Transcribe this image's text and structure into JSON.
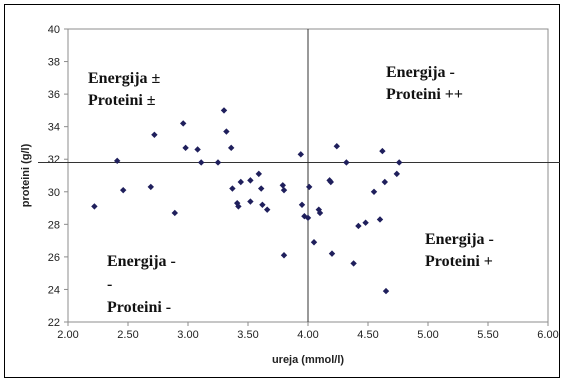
{
  "chart_data": {
    "type": "scatter",
    "xlabel": "ureja (mmol/l)",
    "ylabel": "proteini (g/l)",
    "xlim": [
      2.0,
      6.0
    ],
    "ylim": [
      22,
      40
    ],
    "xticks": [
      "2.00",
      "2.50",
      "3.00",
      "3.50",
      "4.00",
      "4.50",
      "5.00",
      "5.50",
      "6.00"
    ],
    "yticks": [
      "22",
      "24",
      "26",
      "28",
      "30",
      "32",
      "34",
      "36",
      "38",
      "40"
    ],
    "grid": false,
    "legend": "none",
    "marker_color": "#1f1f5c",
    "reference_lines": {
      "x": 4.0,
      "y": 31.8
    },
    "annotations": [
      {
        "lines": [
          "Energija ±",
          "Proteini  ±"
        ],
        "quadrant": "top-left"
      },
      {
        "lines": [
          "Energija -",
          "Proteini  ++"
        ],
        "quadrant": "top-right"
      },
      {
        "lines": [
          "Energija -",
          "-",
          "Proteini  -"
        ],
        "quadrant": "bottom-left"
      },
      {
        "lines": [
          "Energija -",
          "Proteini  +"
        ],
        "quadrant": "bottom-right"
      }
    ],
    "points": [
      [
        2.22,
        29.1
      ],
      [
        2.41,
        31.9
      ],
      [
        2.46,
        30.1
      ],
      [
        2.69,
        30.3
      ],
      [
        2.72,
        33.5
      ],
      [
        2.89,
        28.7
      ],
      [
        2.96,
        34.2
      ],
      [
        2.98,
        32.7
      ],
      [
        3.08,
        32.6
      ],
      [
        3.11,
        31.8
      ],
      [
        3.25,
        31.8
      ],
      [
        3.3,
        35.0
      ],
      [
        3.32,
        33.7
      ],
      [
        3.36,
        32.7
      ],
      [
        3.37,
        30.2
      ],
      [
        3.41,
        29.3
      ],
      [
        3.42,
        29.1
      ],
      [
        3.44,
        30.6
      ],
      [
        3.52,
        29.4
      ],
      [
        3.52,
        30.7
      ],
      [
        3.59,
        31.1
      ],
      [
        3.61,
        30.2
      ],
      [
        3.62,
        29.2
      ],
      [
        3.66,
        28.9
      ],
      [
        3.79,
        30.4
      ],
      [
        3.8,
        30.1
      ],
      [
        3.8,
        26.1
      ],
      [
        3.94,
        32.3
      ],
      [
        3.95,
        29.2
      ],
      [
        3.97,
        28.5
      ],
      [
        4.0,
        28.4
      ],
      [
        4.01,
        30.3
      ],
      [
        4.05,
        26.9
      ],
      [
        4.09,
        28.9
      ],
      [
        4.1,
        28.7
      ],
      [
        4.18,
        30.7
      ],
      [
        4.19,
        30.6
      ],
      [
        4.2,
        26.2
      ],
      [
        4.24,
        32.8
      ],
      [
        4.32,
        31.8
      ],
      [
        4.38,
        25.6
      ],
      [
        4.42,
        27.9
      ],
      [
        4.48,
        28.1
      ],
      [
        4.55,
        30.0
      ],
      [
        4.6,
        28.3
      ],
      [
        4.62,
        32.5
      ],
      [
        4.64,
        30.6
      ],
      [
        4.65,
        23.9
      ],
      [
        4.74,
        31.1
      ],
      [
        4.76,
        31.8
      ]
    ]
  }
}
